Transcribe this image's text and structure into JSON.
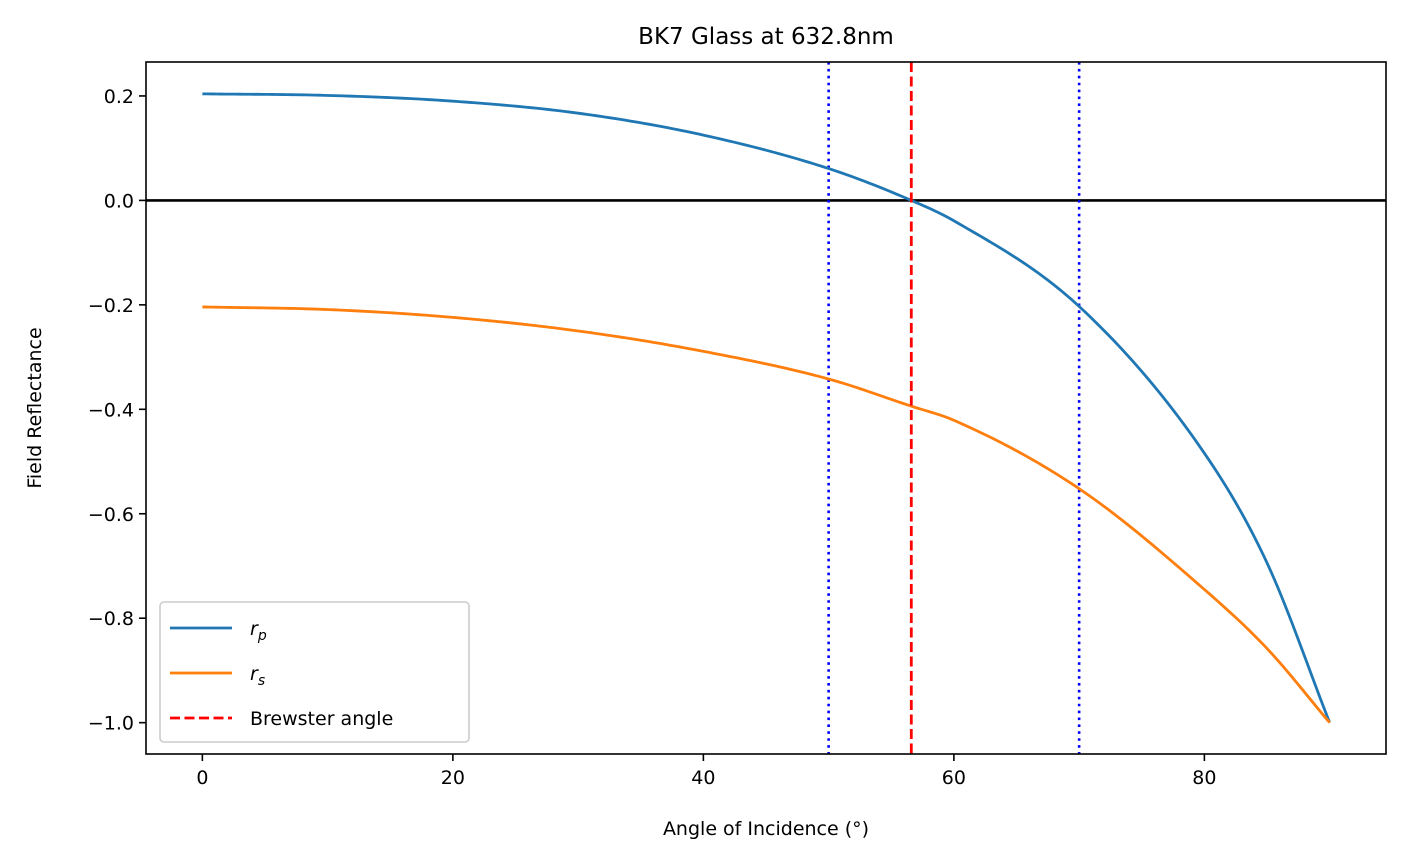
{
  "chart_data": {
    "type": "line",
    "title": "BK7 Glass at 632.8nm",
    "xlabel": "Angle of Incidence (°)",
    "ylabel": "Field Reflectance",
    "xlim": [
      -4.5,
      94.5
    ],
    "ylim": [
      -1.06,
      0.265
    ],
    "xticks": [
      0,
      20,
      40,
      60,
      80
    ],
    "yticks": [
      0.2,
      0.0,
      -0.2,
      -0.4,
      -0.6,
      -0.8,
      -1.0
    ],
    "ytick_labels": [
      "0.2",
      "0.0",
      "−0.2",
      "−0.4",
      "−0.6",
      "−0.8",
      "−1.0"
    ],
    "grid": false,
    "legend_position": "lower-left",
    "series": [
      {
        "name": "rp",
        "color": "#1f77b4",
        "x": [
          0,
          10,
          20,
          30,
          40,
          50,
          56.6,
          60,
          70,
          80,
          85,
          90
        ],
        "y": [
          0.204,
          0.201,
          0.19,
          0.167,
          0.125,
          0.061,
          0.0,
          -0.039,
          -0.203,
          -0.484,
          -0.694,
          -1.0
        ]
      },
      {
        "name": "rs",
        "color": "#ff7f0e",
        "x": [
          0,
          10,
          20,
          30,
          40,
          50,
          56.6,
          60,
          70,
          80,
          85,
          90
        ],
        "y": [
          -0.204,
          -0.209,
          -0.224,
          -0.25,
          -0.289,
          -0.342,
          -0.394,
          -0.421,
          -0.552,
          -0.745,
          -0.858,
          -1.0
        ]
      }
    ],
    "reference_lines": {
      "horizontal": {
        "y": 0.0,
        "color": "#000000"
      },
      "brewster": {
        "name": "Brewster angle",
        "x": 56.6,
        "color": "#ff0000",
        "style": "dashed"
      },
      "dotted": [
        {
          "x": 50,
          "color": "#0000ff",
          "style": "dotted"
        },
        {
          "x": 70,
          "color": "#0000ff",
          "style": "dotted"
        }
      ]
    },
    "legend": [
      {
        "label_main": "r",
        "label_sub": "p",
        "color": "#1f77b4",
        "style": "solid"
      },
      {
        "label_main": "r",
        "label_sub": "s",
        "color": "#ff7f0e",
        "style": "solid"
      },
      {
        "label_main": "Brewster angle",
        "label_sub": "",
        "color": "#ff0000",
        "style": "dashed"
      }
    ]
  }
}
